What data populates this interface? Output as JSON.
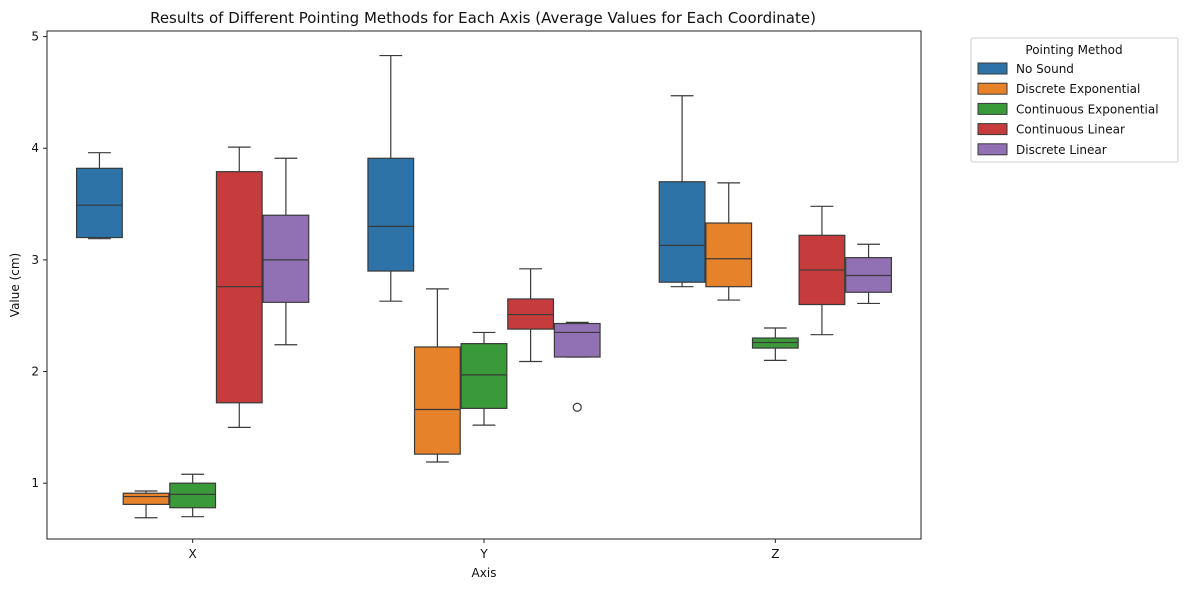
{
  "chart_data": {
    "type": "box",
    "title": "Results of Different Pointing Methods for Each Axis (Average Values for Each Coordinate)",
    "xlabel": "Axis",
    "ylabel": "Value (cm)",
    "categories": [
      "X",
      "Y",
      "Z"
    ],
    "yticks": [
      "1",
      "2",
      "3",
      "4",
      "5"
    ],
    "ylim": [
      0.5,
      5.05
    ],
    "grid": false,
    "legend": {
      "title": "Pointing Method",
      "placement": "outside-top-right"
    },
    "series": [
      {
        "name": "No Sound",
        "color": "#2d73a8",
        "boxes": [
          {
            "whisker_low": 3.19,
            "q1": 3.2,
            "median": 3.49,
            "q3": 3.82,
            "whisker_high": 3.96,
            "outliers": []
          },
          {
            "whisker_low": 2.63,
            "q1": 2.9,
            "median": 3.3,
            "q3": 3.91,
            "whisker_high": 4.83,
            "outliers": []
          },
          {
            "whisker_low": 2.76,
            "q1": 2.8,
            "median": 3.13,
            "q3": 3.7,
            "whisker_high": 4.47,
            "outliers": []
          }
        ]
      },
      {
        "name": "Discrete Exponential",
        "color": "#e5822a",
        "boxes": [
          {
            "whisker_low": 0.69,
            "q1": 0.81,
            "median": 0.88,
            "q3": 0.91,
            "whisker_high": 0.93,
            "outliers": []
          },
          {
            "whisker_low": 1.19,
            "q1": 1.26,
            "median": 1.66,
            "q3": 2.22,
            "whisker_high": 2.74,
            "outliers": []
          },
          {
            "whisker_low": 2.64,
            "q1": 2.76,
            "median": 3.01,
            "q3": 3.33,
            "whisker_high": 3.69,
            "outliers": []
          }
        ]
      },
      {
        "name": "Continuous Exponential",
        "color": "#3a9a3a",
        "boxes": [
          {
            "whisker_low": 0.7,
            "q1": 0.78,
            "median": 0.9,
            "q3": 1.0,
            "whisker_high": 1.08,
            "outliers": []
          },
          {
            "whisker_low": 1.52,
            "q1": 1.67,
            "median": 1.97,
            "q3": 2.25,
            "whisker_high": 2.35,
            "outliers": []
          },
          {
            "whisker_low": 2.1,
            "q1": 2.21,
            "median": 2.26,
            "q3": 2.3,
            "whisker_high": 2.39,
            "outliers": []
          }
        ]
      },
      {
        "name": "Continuous Linear",
        "color": "#c63b3b",
        "boxes": [
          {
            "whisker_low": 1.5,
            "q1": 1.72,
            "median": 2.76,
            "q3": 3.79,
            "whisker_high": 4.01,
            "outliers": []
          },
          {
            "whisker_low": 2.09,
            "q1": 2.38,
            "median": 2.51,
            "q3": 2.65,
            "whisker_high": 2.92,
            "outliers": []
          },
          {
            "whisker_low": 2.33,
            "q1": 2.6,
            "median": 2.91,
            "q3": 3.22,
            "whisker_high": 3.48,
            "outliers": []
          }
        ]
      },
      {
        "name": "Discrete Linear",
        "color": "#9270b4",
        "boxes": [
          {
            "whisker_low": 2.24,
            "q1": 2.62,
            "median": 3.0,
            "q3": 3.4,
            "whisker_high": 3.91,
            "outliers": []
          },
          {
            "whisker_low": 2.13,
            "q1": 2.13,
            "median": 2.35,
            "q3": 2.43,
            "whisker_high": 2.44,
            "outliers": [
              1.68
            ]
          },
          {
            "whisker_low": 2.61,
            "q1": 2.71,
            "median": 2.86,
            "q3": 3.02,
            "whisker_high": 3.14,
            "outliers": []
          }
        ]
      }
    ]
  }
}
